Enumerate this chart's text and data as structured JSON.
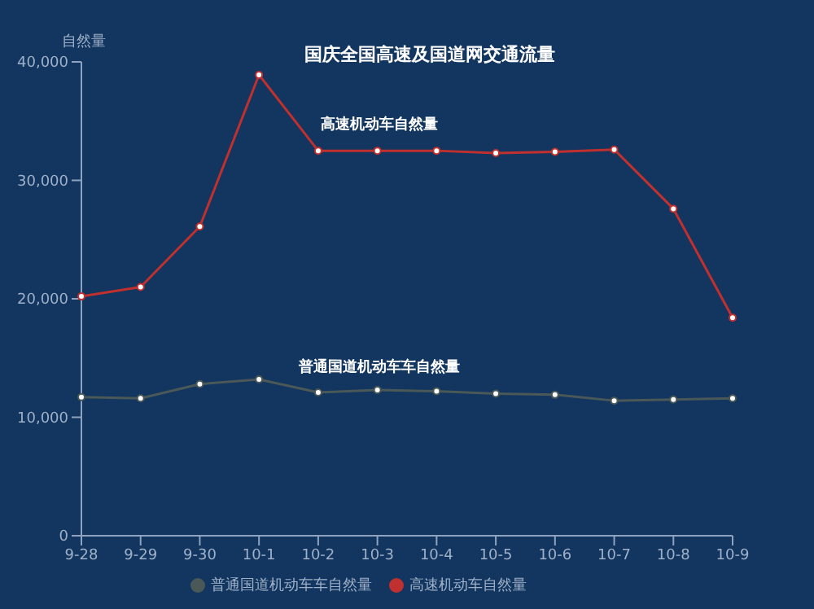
{
  "chart_data": {
    "type": "line",
    "title": "国庆全国高速及国道网交通流量",
    "ylabel": "自然量",
    "categories": [
      "9-28",
      "9-29",
      "9-30",
      "10-1",
      "10-2",
      "10-3",
      "10-4",
      "10-5",
      "10-6",
      "10-7",
      "10-8",
      "10-9"
    ],
    "series": [
      {
        "name": "高速机动车自然量",
        "color": "#c0302e",
        "values": [
          20200,
          21000,
          26100,
          38900,
          32500,
          32500,
          32500,
          32300,
          32400,
          32600,
          27600,
          18400
        ]
      },
      {
        "name": "普通国道机动车车自然量",
        "color": "#4a5858",
        "values": [
          11700,
          11600,
          12800,
          13200,
          12100,
          12300,
          12200,
          12000,
          11900,
          11400,
          11500,
          11600
        ]
      }
    ],
    "ylim": [
      0,
      40000
    ],
    "yticks": [
      {
        "value": 0,
        "label": "0"
      },
      {
        "value": 10000,
        "label": "10,000"
      },
      {
        "value": 20000,
        "label": "20,000"
      },
      {
        "value": 30000,
        "label": "30,000"
      },
      {
        "value": 40000,
        "label": "40,000"
      }
    ],
    "annotations": [
      "高速机动车自然量",
      "普通国道机动车车自然量"
    ],
    "grid": false,
    "legend": "bottom",
    "marker": "circle",
    "line_style": "solid"
  }
}
